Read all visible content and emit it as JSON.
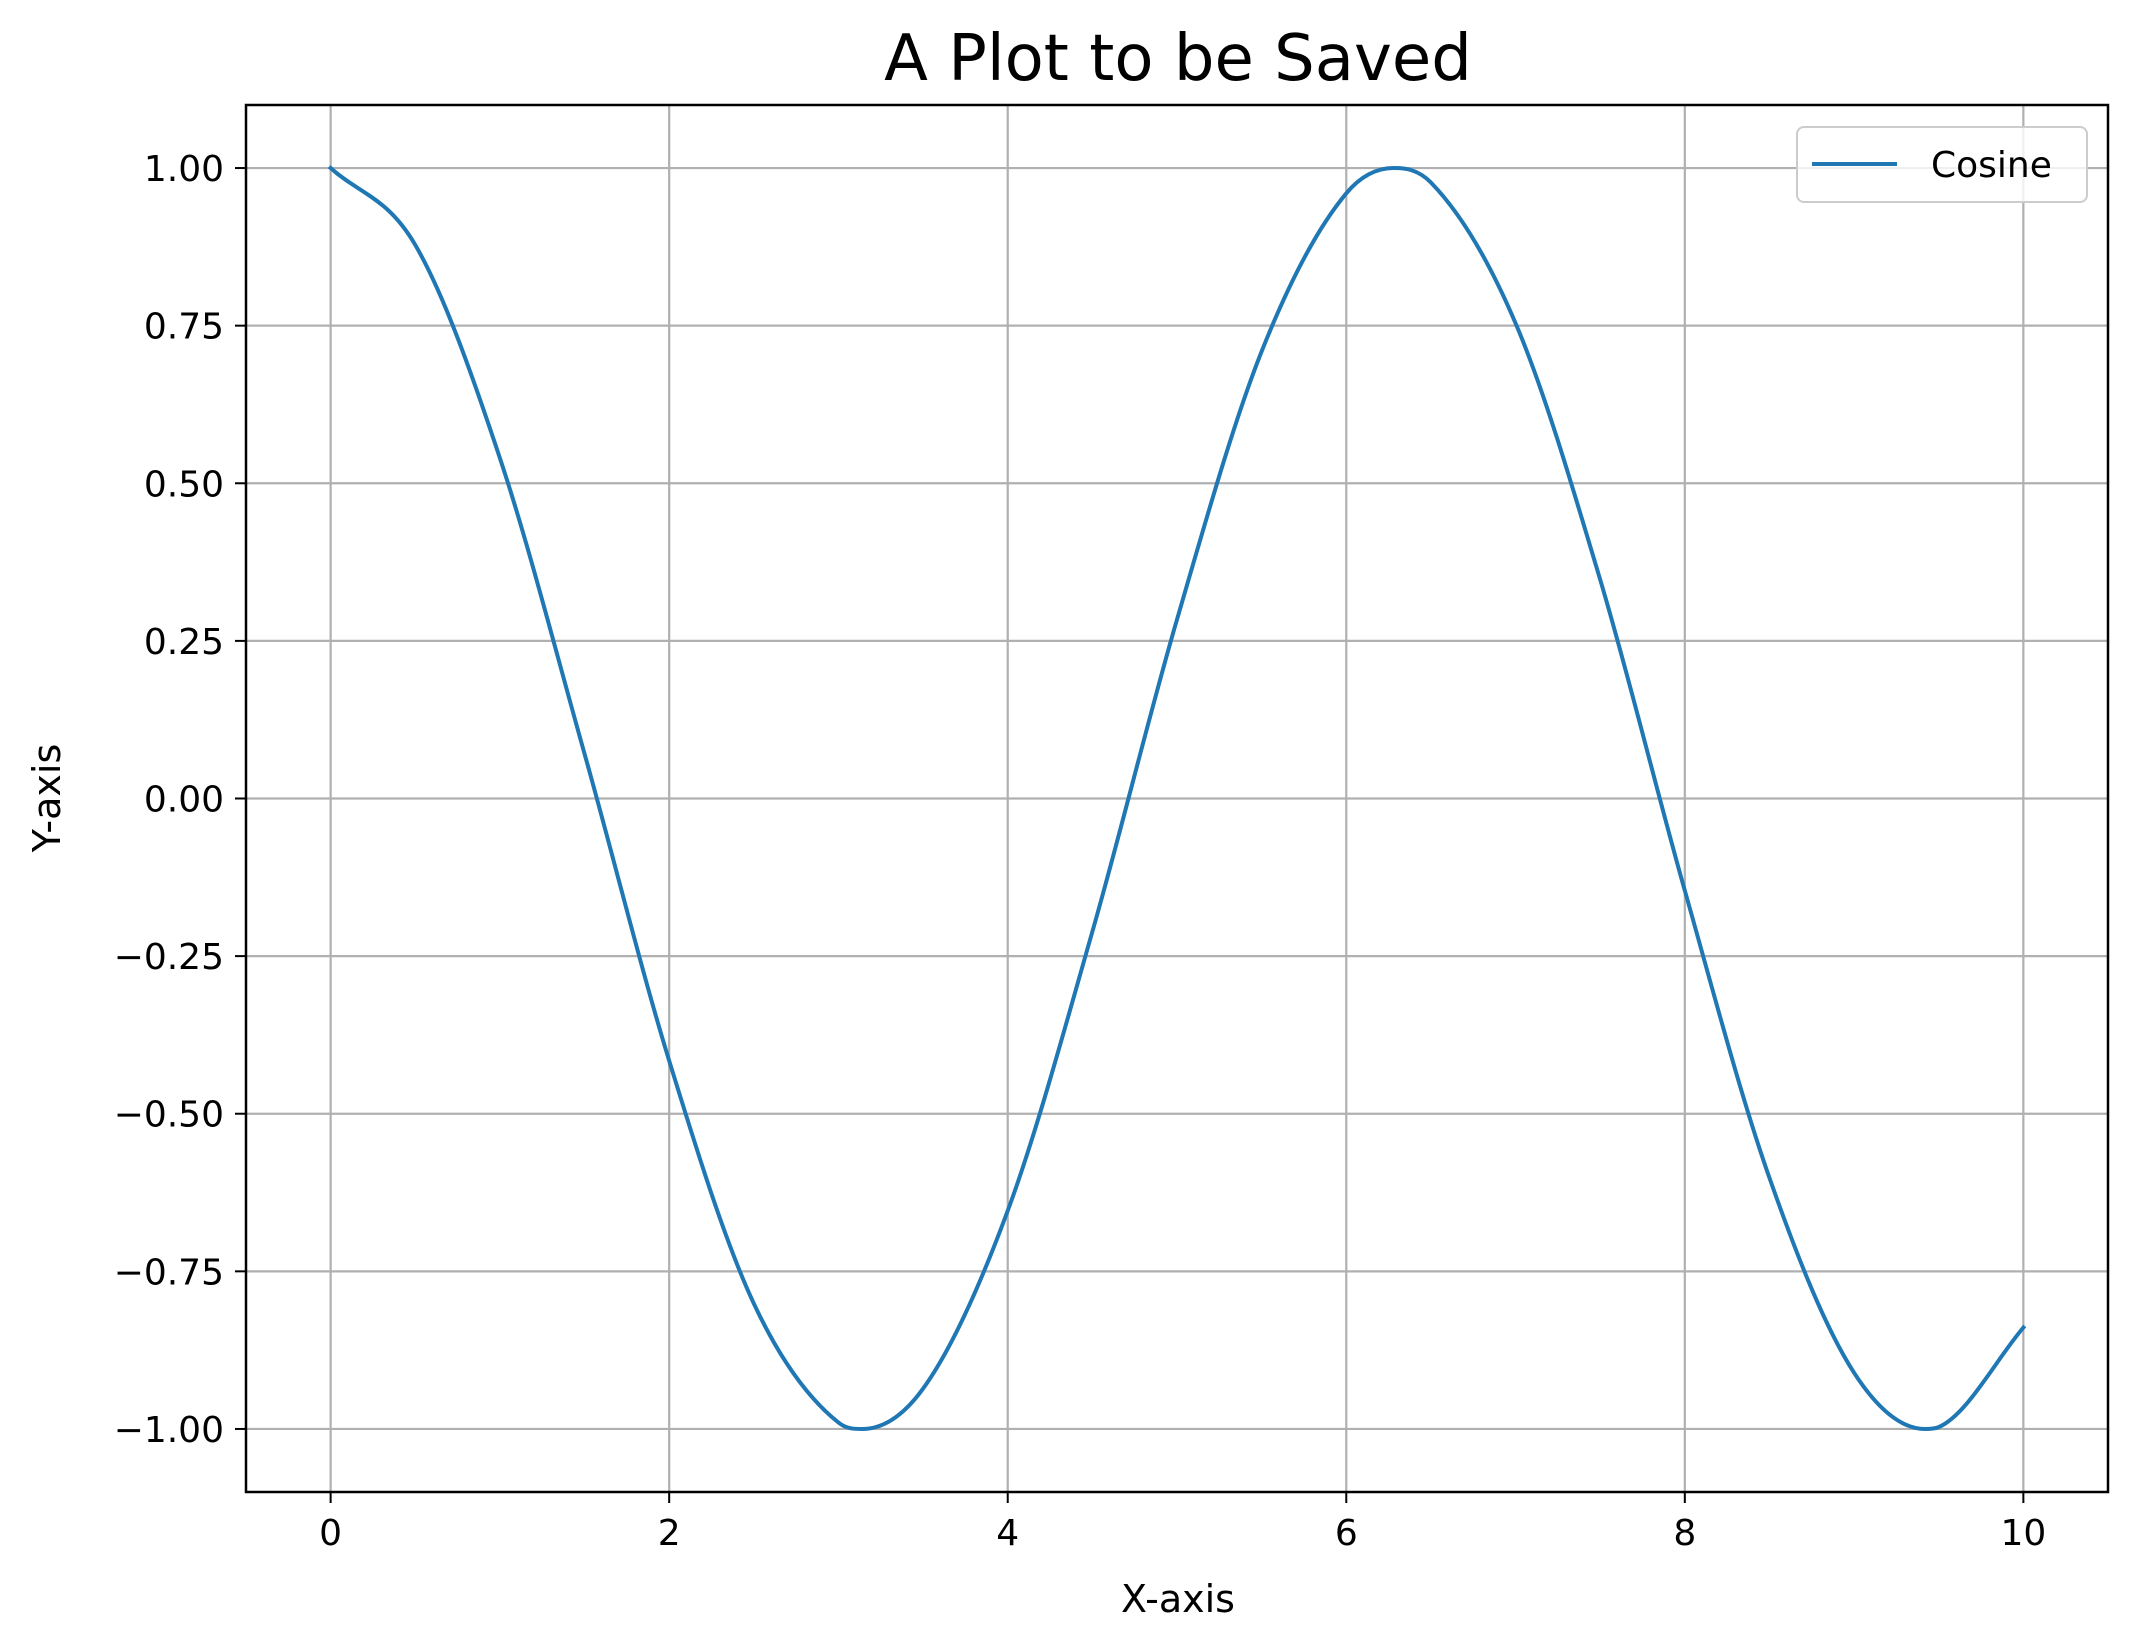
{
  "chart_data": {
    "type": "line",
    "title": "A Plot to be Saved",
    "xlabel": "X-axis",
    "ylabel": "Y-axis",
    "xlim": [
      -0.5,
      10.5
    ],
    "ylim": [
      -1.1,
      1.1
    ],
    "x_ticks": [
      {
        "value": 0,
        "label": "0"
      },
      {
        "value": 2,
        "label": "2"
      },
      {
        "value": 4,
        "label": "4"
      },
      {
        "value": 6,
        "label": "6"
      },
      {
        "value": 8,
        "label": "8"
      },
      {
        "value": 10,
        "label": "10"
      }
    ],
    "y_ticks": [
      {
        "value": 1.0,
        "label": "1.00"
      },
      {
        "value": 0.75,
        "label": "0.75"
      },
      {
        "value": 0.5,
        "label": "0.50"
      },
      {
        "value": 0.25,
        "label": "0.25"
      },
      {
        "value": 0.0,
        "label": "0.00"
      },
      {
        "value": -0.25,
        "label": "−0.25"
      },
      {
        "value": -0.5,
        "label": "−0.50"
      },
      {
        "value": -0.75,
        "label": "−0.75"
      },
      {
        "value": -1.0,
        "label": "−1.00"
      }
    ],
    "grid": true,
    "legend_position": "top-right",
    "series": [
      {
        "name": "Cosine",
        "color": "#1f77b4",
        "x": [
          0.0,
          0.5,
          1.0,
          1.5,
          2.0,
          2.5,
          3.0,
          3.14,
          3.5,
          4.0,
          4.5,
          5.0,
          5.5,
          6.0,
          6.28,
          6.5,
          7.0,
          7.5,
          8.0,
          8.5,
          9.0,
          9.42,
          9.5,
          10.0
        ],
        "y": [
          1.0,
          0.878,
          0.54,
          0.071,
          -0.416,
          -0.801,
          -0.99,
          -1.0,
          -0.936,
          -0.654,
          -0.211,
          0.284,
          0.709,
          0.96,
          1.0,
          0.977,
          0.754,
          0.347,
          -0.146,
          -0.602,
          -0.911,
          -1.0,
          -0.997,
          -0.839
        ]
      }
    ]
  }
}
